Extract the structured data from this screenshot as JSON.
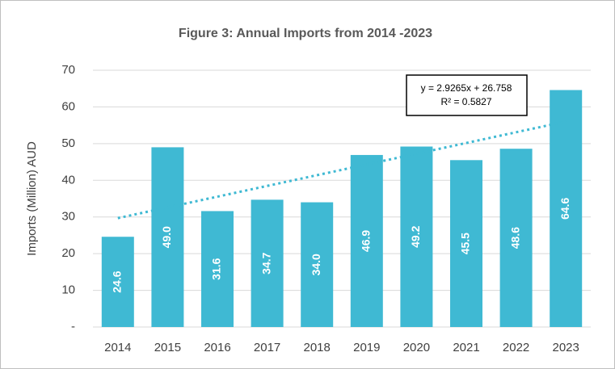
{
  "chart_data": {
    "type": "bar",
    "title": "Figure 3: Annual Imports from 2014 -2023",
    "y_label": "Imports (Million) AUD",
    "categories": [
      "2014",
      "2015",
      "2016",
      "2017",
      "2018",
      "2019",
      "2020",
      "2021",
      "2022",
      "2023"
    ],
    "values": [
      24.6,
      49.0,
      31.6,
      34.7,
      34.0,
      46.9,
      49.2,
      45.5,
      48.6,
      64.6
    ],
    "value_labels": [
      "24.6",
      "49.0",
      "31.6",
      "34.7",
      "34.0",
      "46.9",
      "49.2",
      "45.5",
      "48.6",
      "64.6"
    ],
    "color": "#3fb9d3",
    "ylim": [
      0,
      70
    ],
    "yticks": [
      {
        "value": 0,
        "label": "-"
      },
      10,
      20,
      30,
      40,
      50,
      60,
      70
    ],
    "grid": true,
    "trendline": {
      "slope": 2.9265,
      "intercept": 26.758,
      "color": "#3fb9d3"
    },
    "annotations": [
      "y = 2.9265x + 26.758",
      "R² = 0.5827"
    ]
  }
}
